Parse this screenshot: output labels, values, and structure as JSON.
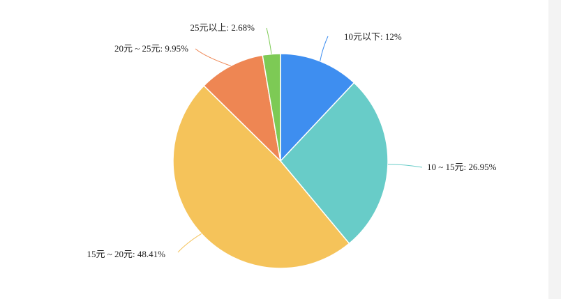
{
  "chart_data": {
    "type": "pie",
    "title": "",
    "categories": [
      "10元以下",
      "10 ~ 15元",
      "15元 ~ 20元",
      "20元 ~ 25元",
      "25元以上"
    ],
    "values": [
      12,
      26.95,
      48.41,
      9.95,
      2.68
    ],
    "labels": [
      "10元以下: 12%",
      "10 ~ 15元: 26.95%",
      "15元 ~ 20元: 48.41%",
      "20元 ~ 25元: 9.95%",
      "25元以上: 2.68%"
    ],
    "colors": [
      "#3e8ef0",
      "#68ccc8",
      "#f5c35a",
      "#ee8653",
      "#7dca55"
    ],
    "start_angle": "12 o'clock",
    "direction": "clockwise",
    "legend": "none"
  }
}
